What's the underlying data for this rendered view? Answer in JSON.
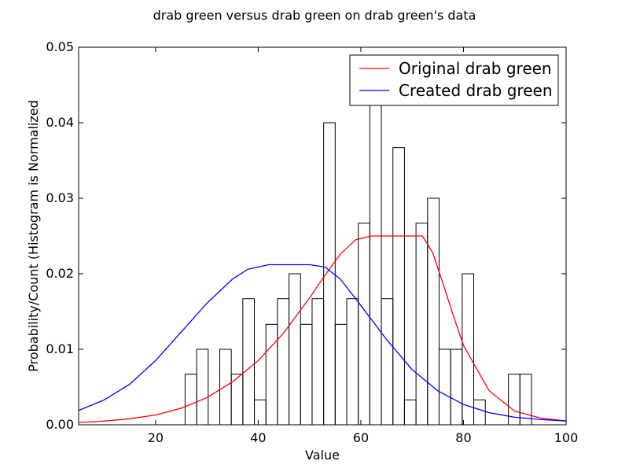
{
  "chart_data": {
    "type": "bar",
    "title": "drab green versus drab green on drab green's data",
    "xlabel": "Value",
    "ylabel": "Probability/Count (Histogram is Normalized",
    "xlim": [
      5,
      100
    ],
    "ylim": [
      0,
      0.05
    ],
    "x_ticks": [
      20,
      40,
      60,
      80,
      100
    ],
    "y_ticks": [
      "0.00",
      "0.01",
      "0.02",
      "0.03",
      "0.04",
      "0.05"
    ],
    "grid": false,
    "legend_placement": "top-right",
    "histogram": {
      "bin_width": 2.25,
      "bin_edges": [
        25.75,
        28.0,
        30.25,
        32.5,
        34.75,
        37.0,
        39.25,
        41.5,
        43.75,
        46.0,
        48.25,
        50.5,
        52.75,
        55.0,
        57.25,
        59.5,
        61.75,
        64.0,
        66.25,
        68.5,
        70.75,
        73.0,
        75.25,
        77.5,
        79.75,
        82.0,
        84.25,
        86.5,
        88.75,
        91.0,
        93.25
      ],
      "values": [
        0.0067,
        0.01,
        0.0,
        0.01,
        0.0067,
        0.0167,
        0.0033,
        0.0133,
        0.0167,
        0.02,
        0.0133,
        0.0167,
        0.04,
        0.0133,
        0.0167,
        0.0267,
        0.0433,
        0.0167,
        0.0367,
        0.0033,
        0.0267,
        0.03,
        0.01,
        0.01,
        0.02,
        0.0033,
        0.0,
        0.0,
        0.0067,
        0.0067
      ]
    },
    "series": [
      {
        "name": "Original drab green",
        "color": "#ff0000",
        "x": [
          5,
          10,
          15,
          20,
          25,
          30,
          35,
          40,
          45,
          50,
          53,
          56,
          59,
          62,
          65,
          68,
          72,
          74,
          76,
          78,
          80,
          85,
          90,
          95,
          100
        ],
        "y": [
          0.0003,
          0.0005,
          0.0008,
          0.0013,
          0.0022,
          0.0036,
          0.0057,
          0.0085,
          0.0122,
          0.0168,
          0.0198,
          0.0226,
          0.0245,
          0.025,
          0.025,
          0.025,
          0.025,
          0.0228,
          0.0187,
          0.0145,
          0.0105,
          0.0045,
          0.0018,
          0.0009,
          0.0005
        ]
      },
      {
        "name": "Created drab green",
        "color": "#0000ff",
        "x": [
          5,
          10,
          15,
          20,
          25,
          30,
          35,
          38,
          42,
          46,
          50,
          53,
          56,
          60,
          65,
          70,
          75,
          80,
          85,
          90,
          95,
          100
        ],
        "y": [
          0.0019,
          0.0033,
          0.0054,
          0.0085,
          0.0123,
          0.0161,
          0.0193,
          0.0206,
          0.0212,
          0.0212,
          0.0212,
          0.0209,
          0.0193,
          0.0158,
          0.0113,
          0.0073,
          0.0045,
          0.0027,
          0.0016,
          0.001,
          0.0007,
          0.0005
        ]
      }
    ]
  }
}
